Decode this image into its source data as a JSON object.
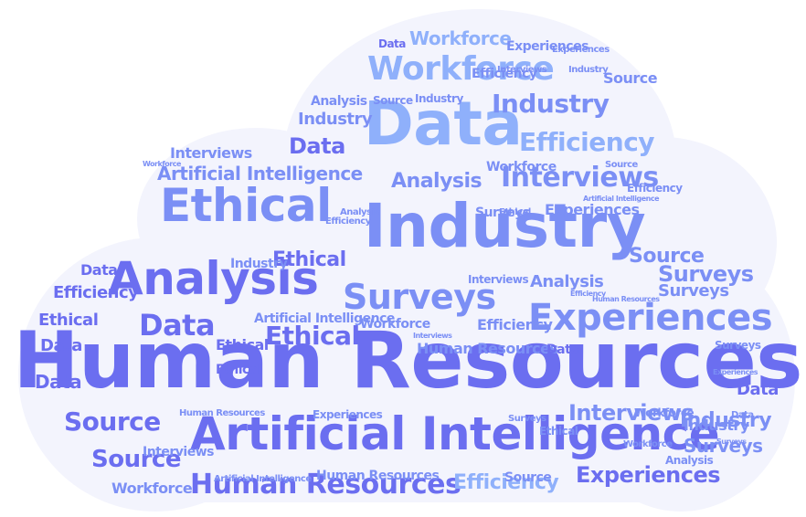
{
  "word_cloud": {
    "colors": {
      "background": "#f3f4fd",
      "dark": "#6b6ef0",
      "mid": "#7b8ff5",
      "light": "#8fb0fb"
    },
    "words": [
      {
        "text": "Human Resources",
        "tone": "dark",
        "weight": 1.0
      },
      {
        "text": "Industry",
        "tone": "mid",
        "weight": 0.72
      },
      {
        "text": "Artificial Intelligence",
        "tone": "dark",
        "weight": 0.62
      },
      {
        "text": "Data",
        "tone": "light",
        "weight": 0.62
      },
      {
        "text": "Ethical",
        "tone": "mid",
        "weight": 0.58
      },
      {
        "text": "Analysis",
        "tone": "dark",
        "weight": 0.56
      },
      {
        "text": "Experiences",
        "tone": "mid",
        "weight": 0.46
      },
      {
        "text": "Surveys",
        "tone": "mid",
        "weight": 0.42
      },
      {
        "text": "Workforce",
        "tone": "light",
        "weight": 0.42
      },
      {
        "text": "Human Resources",
        "tone": "dark",
        "weight": 0.38
      },
      {
        "text": "Source",
        "tone": "dark",
        "weight": 0.36
      },
      {
        "text": "Data",
        "tone": "dark",
        "weight": 0.34
      },
      {
        "text": "Interviews",
        "tone": "mid",
        "weight": 0.3
      },
      {
        "text": "Efficiency",
        "tone": "light",
        "weight": 0.3
      },
      {
        "text": "Industry",
        "tone": "mid",
        "weight": 0.28
      },
      {
        "text": "Ethical",
        "tone": "dark",
        "weight": 0.28
      },
      {
        "text": "Source",
        "tone": "dark",
        "weight": 0.28
      },
      {
        "text": "Experiences",
        "tone": "dark",
        "weight": 0.26
      },
      {
        "text": "Surveys",
        "tone": "mid",
        "weight": 0.26
      },
      {
        "text": "Workforce",
        "tone": "light",
        "weight": 0.22
      },
      {
        "text": "Data",
        "tone": "dark",
        "weight": 0.22
      },
      {
        "text": "Interviews",
        "tone": "mid",
        "weight": 0.22
      },
      {
        "text": "Efficiency",
        "tone": "light",
        "weight": 0.22
      },
      {
        "text": "Industry",
        "tone": "mid",
        "weight": 0.2
      },
      {
        "text": "Ethical",
        "tone": "dark",
        "weight": 0.2
      },
      {
        "text": "Source",
        "tone": "mid",
        "weight": 0.2
      },
      {
        "text": "Analysis",
        "tone": "mid",
        "weight": 0.18
      },
      {
        "text": "Surveys",
        "tone": "mid",
        "weight": 0.18
      },
      {
        "text": "Artificial Intelligence",
        "tone": "mid",
        "weight": 0.18
      },
      {
        "text": "Data",
        "tone": "dark",
        "weight": 0.18
      },
      {
        "text": "Data",
        "tone": "dark",
        "weight": 0.18
      },
      {
        "text": "Efficiency",
        "tone": "dark",
        "weight": 0.18
      },
      {
        "text": "Industry",
        "tone": "mid",
        "weight": 0.16
      },
      {
        "text": "Ethical",
        "tone": "dark",
        "weight": 0.16
      },
      {
        "text": "Workforce",
        "tone": "mid",
        "weight": 0.16
      },
      {
        "text": "Surveys",
        "tone": "mid",
        "weight": 0.16
      },
      {
        "text": "Data",
        "tone": "dark",
        "weight": 0.16
      },
      {
        "text": "Analysis",
        "tone": "mid",
        "weight": 0.14
      },
      {
        "text": "Industry",
        "tone": "mid",
        "weight": 0.14
      },
      {
        "text": "Interviews",
        "tone": "mid",
        "weight": 0.12
      },
      {
        "text": "Human Resources",
        "tone": "mid",
        "weight": 0.12
      },
      {
        "text": "Source",
        "tone": "mid",
        "weight": 0.12
      },
      {
        "text": "Experiences",
        "tone": "mid",
        "weight": 0.12
      },
      {
        "text": "Workforce",
        "tone": "mid",
        "weight": 0.12
      },
      {
        "text": "Efficiency",
        "tone": "mid",
        "weight": 0.12
      },
      {
        "text": "Ethical",
        "tone": "dark",
        "weight": 0.12
      },
      {
        "text": "Data",
        "tone": "dark",
        "weight": 0.12
      },
      {
        "text": "Artificial Intelligence",
        "tone": "mid",
        "weight": 0.1
      },
      {
        "text": "Human Resources",
        "tone": "mid",
        "weight": 0.1
      },
      {
        "text": "Interviews",
        "tone": "mid",
        "weight": 0.1
      },
      {
        "text": "Experiences",
        "tone": "mid",
        "weight": 0.1
      },
      {
        "text": "Surveys",
        "tone": "mid",
        "weight": 0.1
      },
      {
        "text": "Industry",
        "tone": "mid",
        "weight": 0.1
      },
      {
        "text": "Source",
        "tone": "mid",
        "weight": 0.1
      },
      {
        "text": "Analysis",
        "tone": "mid",
        "weight": 0.1
      },
      {
        "text": "Efficiency",
        "tone": "mid",
        "weight": 0.1
      },
      {
        "text": "Workforce",
        "tone": "mid",
        "weight": 0.1
      },
      {
        "text": "Data",
        "tone": "dark",
        "weight": 0.1
      },
      {
        "text": "Ethical",
        "tone": "dark",
        "weight": 0.1
      },
      {
        "text": "Interviews",
        "tone": "mid",
        "weight": 0.08
      },
      {
        "text": "Industry",
        "tone": "mid",
        "weight": 0.08
      },
      {
        "text": "Experiences",
        "tone": "mid",
        "weight": 0.08
      },
      {
        "text": "Workforce",
        "tone": "mid",
        "weight": 0.08
      },
      {
        "text": "Analysis",
        "tone": "mid",
        "weight": 0.08
      },
      {
        "text": "Data",
        "tone": "dark",
        "weight": 0.08
      },
      {
        "text": "Source",
        "tone": "mid",
        "weight": 0.08
      },
      {
        "text": "Efficiency",
        "tone": "mid",
        "weight": 0.08
      },
      {
        "text": "Ethical",
        "tone": "mid",
        "weight": 0.08
      },
      {
        "text": "Surveys",
        "tone": "mid",
        "weight": 0.08
      },
      {
        "text": "Human Resources",
        "tone": "mid",
        "weight": 0.06
      },
      {
        "text": "Artificial Intelligence",
        "tone": "mid",
        "weight": 0.06
      },
      {
        "text": "Interviews",
        "tone": "mid",
        "weight": 0.06
      },
      {
        "text": "Experiences",
        "tone": "mid",
        "weight": 0.06
      },
      {
        "text": "Analysis",
        "tone": "mid",
        "weight": 0.06
      },
      {
        "text": "Industry",
        "tone": "mid",
        "weight": 0.06
      },
      {
        "text": "Workforce",
        "tone": "mid",
        "weight": 0.06
      },
      {
        "text": "Efficiency",
        "tone": "mid",
        "weight": 0.06
      },
      {
        "text": "Source",
        "tone": "mid",
        "weight": 0.06
      },
      {
        "text": "Ethical",
        "tone": "mid",
        "weight": 0.06
      },
      {
        "text": "Data",
        "tone": "mid",
        "weight": 0.06
      },
      {
        "text": "Surveys",
        "tone": "mid",
        "weight": 0.06
      },
      {
        "text": "Human Resources",
        "tone": "mid",
        "weight": 0.04
      },
      {
        "text": "Artificial Intelligence",
        "tone": "mid",
        "weight": 0.04
      },
      {
        "text": "Interviews",
        "tone": "mid",
        "weight": 0.04
      },
      {
        "text": "Experiences",
        "tone": "mid",
        "weight": 0.04
      },
      {
        "text": "Efficiency",
        "tone": "mid",
        "weight": 0.04
      },
      {
        "text": "Workforce",
        "tone": "mid",
        "weight": 0.04
      },
      {
        "text": "Surveys",
        "tone": "mid",
        "weight": 0.04
      }
    ]
  }
}
